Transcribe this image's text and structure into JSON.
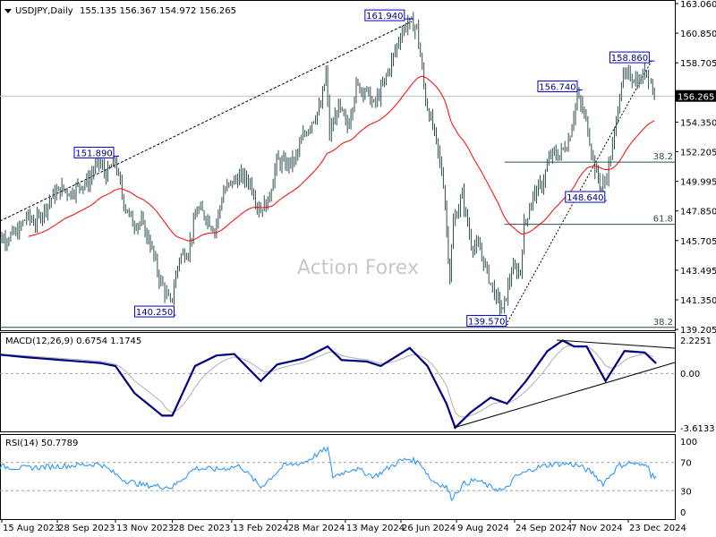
{
  "header": {
    "symbol_label": "USDJPY,Daily",
    "ohlc": "155.135 156.367 154.972 156.265"
  },
  "watermark": "Action Forex",
  "colors": {
    "bars": "#2f4f4f",
    "ma": "#ff0000",
    "macd": "#000080",
    "signal": "#b0b0b0",
    "rsi": "#1e90ff",
    "label_border": "#0000cd"
  },
  "chart_data": [
    {
      "type": "ohlc-bar",
      "title": "USDJPY,Daily",
      "ylim": [
        139.205,
        163.06
      ],
      "y_ticks": [
        "163.060",
        "160.850",
        "158.705",
        "156.560",
        "154.350",
        "152.205",
        "149.995",
        "147.850",
        "145.705",
        "143.495",
        "141.350",
        "139.205"
      ],
      "current_price": "156.265",
      "x_ticks": [
        "15 Aug 2023",
        "28 Sep 2023",
        "13 Nov 2023",
        "28 Dec 2023",
        "13 Feb 2024",
        "28 Mar 2024",
        "13 May 2024",
        "26 Jun 2024",
        "9 Aug 2024",
        "24 Sep 2024",
        "7 Nov 2024",
        "23 Dec 2024"
      ],
      "x_tick_dates": [
        "2023-08-15",
        "2023-09-28",
        "2023-11-13",
        "2023-12-28",
        "2024-02-13",
        "2024-03-28",
        "2024-05-13",
        "2024-06-26",
        "2024-08-09",
        "2024-09-24",
        "2024-11-07",
        "2024-12-23"
      ],
      "closes": [
        [
          "2023-08-08",
          145.5
        ],
        [
          "2023-08-15",
          145.8
        ],
        [
          "2023-08-22",
          146.0
        ],
        [
          "2023-08-29",
          146.3
        ],
        [
          "2023-09-05",
          147.5
        ],
        [
          "2023-09-12",
          147.0
        ],
        [
          "2023-09-19",
          148.0
        ],
        [
          "2023-09-26",
          149.0
        ],
        [
          "2023-10-03",
          149.5
        ],
        [
          "2023-10-10",
          149.2
        ],
        [
          "2023-10-17",
          149.8
        ],
        [
          "2023-10-24",
          150.0
        ],
        [
          "2023-10-31",
          151.6
        ],
        [
          "2023-11-07",
          150.5
        ],
        [
          "2023-11-14",
          151.5
        ],
        [
          "2023-11-21",
          148.5
        ],
        [
          "2023-11-28",
          147.0
        ],
        [
          "2023-12-05",
          147.0
        ],
        [
          "2023-12-12",
          145.5
        ],
        [
          "2023-12-19",
          143.0
        ],
        [
          "2023-12-28",
          141.0
        ],
        [
          "2024-01-04",
          144.5
        ],
        [
          "2024-01-11",
          145.0
        ],
        [
          "2024-01-18",
          148.0
        ],
        [
          "2024-01-25",
          147.5
        ],
        [
          "2024-02-01",
          146.5
        ],
        [
          "2024-02-08",
          149.3
        ],
        [
          "2024-02-15",
          150.0
        ],
        [
          "2024-02-22",
          150.4
        ],
        [
          "2024-02-29",
          150.0
        ],
        [
          "2024-03-07",
          148.0
        ],
        [
          "2024-03-14",
          148.5
        ],
        [
          "2024-03-21",
          151.5
        ],
        [
          "2024-03-28",
          151.3
        ],
        [
          "2024-04-04",
          151.5
        ],
        [
          "2024-04-11",
          153.3
        ],
        [
          "2024-04-18",
          154.5
        ],
        [
          "2024-04-25",
          155.5
        ],
        [
          "2024-04-29",
          158.0
        ],
        [
          "2024-05-02",
          153.5
        ],
        [
          "2024-05-09",
          155.5
        ],
        [
          "2024-05-16",
          154.0
        ],
        [
          "2024-05-23",
          157.0
        ],
        [
          "2024-05-30",
          156.8
        ],
        [
          "2024-06-06",
          155.6
        ],
        [
          "2024-06-13",
          157.0
        ],
        [
          "2024-06-20",
          158.8
        ],
        [
          "2024-06-27",
          160.8
        ],
        [
          "2024-07-03",
          161.7
        ],
        [
          "2024-07-10",
          161.3
        ],
        [
          "2024-07-17",
          156.0
        ],
        [
          "2024-07-24",
          153.5
        ],
        [
          "2024-07-31",
          150.0
        ],
        [
          "2024-08-05",
          143.0
        ],
        [
          "2024-08-08",
          147.0
        ],
        [
          "2024-08-15",
          149.0
        ],
        [
          "2024-08-22",
          145.5
        ],
        [
          "2024-08-29",
          145.0
        ],
        [
          "2024-09-05",
          143.0
        ],
        [
          "2024-09-11",
          141.5
        ],
        [
          "2024-09-16",
          140.5
        ],
        [
          "2024-09-23",
          143.5
        ],
        [
          "2024-09-30",
          143.5
        ],
        [
          "2024-10-03",
          146.8
        ],
        [
          "2024-10-10",
          149.0
        ],
        [
          "2024-10-17",
          149.8
        ],
        [
          "2024-10-24",
          152.0
        ],
        [
          "2024-10-31",
          152.0
        ],
        [
          "2024-11-07",
          153.0
        ],
        [
          "2024-11-14",
          156.3
        ],
        [
          "2024-11-21",
          154.5
        ],
        [
          "2024-11-28",
          151.0
        ],
        [
          "2024-12-03",
          149.5
        ],
        [
          "2024-12-06",
          150.0
        ],
        [
          "2024-12-12",
          152.5
        ],
        [
          "2024-12-19",
          157.5
        ],
        [
          "2024-12-26",
          157.8
        ],
        [
          "2025-01-02",
          157.3
        ],
        [
          "2025-01-08",
          158.3
        ],
        [
          "2025-01-10",
          157.8
        ],
        [
          "2025-01-14",
          156.265
        ]
      ],
      "price_labels": [
        {
          "text": "161.940",
          "date": "2024-07-03",
          "price": 161.94
        },
        {
          "text": "151.890",
          "date": "2023-11-13",
          "price": 151.89
        },
        {
          "text": "140.250",
          "date": "2023-12-28",
          "price": 140.25
        },
        {
          "text": "139.570",
          "date": "2024-09-16",
          "price": 139.57
        },
        {
          "text": "156.740",
          "date": "2024-11-14",
          "price": 156.74
        },
        {
          "text": "148.640",
          "date": "2024-12-03",
          "price": 148.64
        },
        {
          "text": "158.860",
          "date": "2025-01-10",
          "price": 158.86
        }
      ],
      "fib_levels": [
        {
          "text": "38.2",
          "price": 151.45,
          "from": "2024-09-16"
        },
        {
          "text": "61.8",
          "price": 146.9,
          "from": "2024-09-16"
        },
        {
          "text": "38.2",
          "price": 139.35,
          "from": "2023-08-08"
        }
      ]
    },
    {
      "type": "line",
      "title": "MACD(12,26,9) 0.6754 1.1745",
      "ylim": [
        -3.6133,
        2.2251
      ],
      "y_ticks": [
        "2.2251",
        "0.00",
        "-3.6133"
      ],
      "macd": [
        [
          "2023-08-08",
          1.3
        ],
        [
          "2023-09-01",
          1.1
        ],
        [
          "2023-10-01",
          0.9
        ],
        [
          "2023-11-01",
          0.7
        ],
        [
          "2023-11-13",
          0.5
        ],
        [
          "2023-11-28",
          -1.3
        ],
        [
          "2023-12-20",
          -2.8
        ],
        [
          "2023-12-28",
          -2.8
        ],
        [
          "2024-01-15",
          0.5
        ],
        [
          "2024-02-01",
          1.2
        ],
        [
          "2024-02-15",
          1.3
        ],
        [
          "2024-03-07",
          -0.5
        ],
        [
          "2024-03-20",
          0.6
        ],
        [
          "2024-04-10",
          1.0
        ],
        [
          "2024-04-29",
          1.8
        ],
        [
          "2024-05-10",
          0.9
        ],
        [
          "2024-05-30",
          0.8
        ],
        [
          "2024-06-10",
          0.5
        ],
        [
          "2024-07-03",
          1.7
        ],
        [
          "2024-07-17",
          0.5
        ],
        [
          "2024-08-01",
          -2.0
        ],
        [
          "2024-08-08",
          -3.6
        ],
        [
          "2024-08-20",
          -2.6
        ],
        [
          "2024-09-05",
          -1.6
        ],
        [
          "2024-09-18",
          -2.0
        ],
        [
          "2024-10-03",
          -0.5
        ],
        [
          "2024-10-20",
          1.5
        ],
        [
          "2024-11-01",
          2.2
        ],
        [
          "2024-11-10",
          1.8
        ],
        [
          "2024-11-20",
          1.8
        ],
        [
          "2024-12-05",
          -0.5
        ],
        [
          "2024-12-20",
          1.5
        ],
        [
          "2025-01-05",
          1.4
        ],
        [
          "2025-01-14",
          0.68
        ]
      ]
    },
    {
      "type": "line",
      "title": "RSI(14) 50.7789",
      "ylim": [
        0,
        100
      ],
      "y_ticks": [
        "100",
        "70",
        "30",
        "0"
      ],
      "levels": [
        70,
        30
      ],
      "rsi": [
        [
          "2023-08-08",
          65
        ],
        [
          "2023-09-01",
          62
        ],
        [
          "2023-10-01",
          65
        ],
        [
          "2023-11-01",
          68
        ],
        [
          "2023-11-20",
          45
        ],
        [
          "2023-12-05",
          38
        ],
        [
          "2023-12-28",
          35
        ],
        [
          "2024-01-15",
          62
        ],
        [
          "2024-02-01",
          60
        ],
        [
          "2024-02-20",
          65
        ],
        [
          "2024-03-07",
          35
        ],
        [
          "2024-03-25",
          65
        ],
        [
          "2024-04-10",
          70
        ],
        [
          "2024-04-29",
          90
        ],
        [
          "2024-05-03",
          50
        ],
        [
          "2024-05-20",
          62
        ],
        [
          "2024-06-05",
          50
        ],
        [
          "2024-06-25",
          72
        ],
        [
          "2024-07-03",
          75
        ],
        [
          "2024-07-12",
          68
        ],
        [
          "2024-07-20",
          45
        ],
        [
          "2024-08-01",
          35
        ],
        [
          "2024-08-05",
          20
        ],
        [
          "2024-08-15",
          40
        ],
        [
          "2024-08-25",
          45
        ],
        [
          "2024-09-05",
          35
        ],
        [
          "2024-09-16",
          30
        ],
        [
          "2024-09-25",
          50
        ],
        [
          "2024-10-10",
          62
        ],
        [
          "2024-10-25",
          68
        ],
        [
          "2024-11-07",
          68
        ],
        [
          "2024-11-14",
          65
        ],
        [
          "2024-11-25",
          55
        ],
        [
          "2024-12-03",
          40
        ],
        [
          "2024-12-15",
          65
        ],
        [
          "2024-12-25",
          70
        ],
        [
          "2025-01-03",
          65
        ],
        [
          "2025-01-08",
          68
        ],
        [
          "2025-01-10",
          52
        ],
        [
          "2025-01-14",
          50.8
        ]
      ]
    }
  ]
}
